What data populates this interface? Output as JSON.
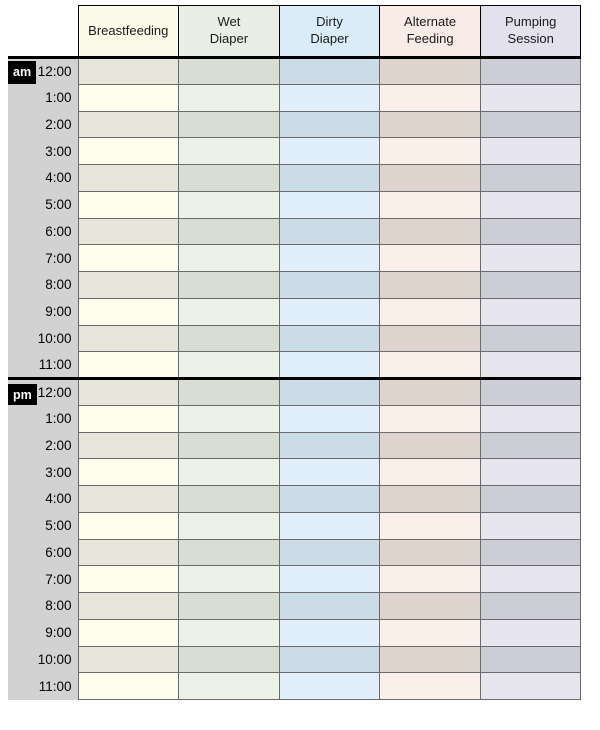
{
  "sheet": {
    "header": {
      "columns": [
        {
          "id": "breastfeeding",
          "label": "Breastfeeding",
          "header_bg": "#fbfbe9",
          "row_light": "#fdfdee",
          "row_dark": "#e5e5d9"
        },
        {
          "id": "wet-diaper",
          "label": "Wet\nDiaper",
          "header_bg": "#e9efe5",
          "row_light": "#edf2e9",
          "row_dark": "#d8ded3"
        },
        {
          "id": "dirty-diaper",
          "label": "Dirty\nDiaper",
          "header_bg": "#daecf7",
          "row_light": "#e0effa",
          "row_dark": "#ccdce7"
        },
        {
          "id": "alternate-feeding",
          "label": "Alternate\nFeeding",
          "header_bg": "#f9ebe5",
          "row_light": "#fbefe9",
          "row_dark": "#ded3cd"
        },
        {
          "id": "pumping-session",
          "label": "Pumping\nSession",
          "header_bg": "#e2e1ed",
          "row_light": "#e6e5f0",
          "row_dark": "#cdcdd8"
        }
      ]
    },
    "sections": [
      {
        "id": "am",
        "badge_label": "am",
        "times": [
          "12:00",
          "1:00",
          "2:00",
          "3:00",
          "4:00",
          "5:00",
          "6:00",
          "7:00",
          "8:00",
          "9:00",
          "10:00",
          "11:00"
        ]
      },
      {
        "id": "pm",
        "badge_label": "pm",
        "times": [
          "12:00",
          "1:00",
          "2:00",
          "3:00",
          "4:00",
          "5:00",
          "6:00",
          "7:00",
          "8:00",
          "9:00",
          "10:00",
          "11:00"
        ]
      }
    ],
    "colors": {
      "page_bg": "#ffffff",
      "time_gutter_bg": "#d2d2d2",
      "grid_line": "#6b6b6b",
      "header_border": "#000000",
      "section_divider": "#000000",
      "badge_bg": "#000000",
      "badge_text": "#ffffff"
    }
  }
}
